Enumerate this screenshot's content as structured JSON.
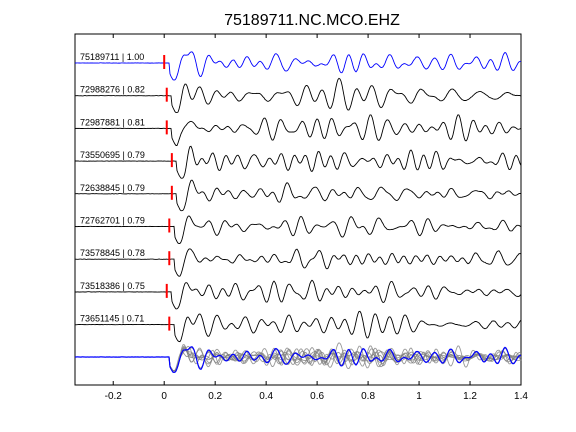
{
  "chart_data": {
    "type": "line",
    "title": "75189711.NC.MCO.EHZ",
    "xlabel": "",
    "ylabel": "",
    "xlim": [
      -0.35,
      1.4
    ],
    "x_ticks": [
      -0.2,
      0,
      0.2,
      0.4,
      0.6,
      0.8,
      1.0,
      1.2,
      1.4
    ],
    "x_tick_labels": [
      "-0.2",
      "0",
      "0.2",
      "0.4",
      "0.6",
      "0.8",
      "1",
      "1.2",
      "1.4"
    ],
    "grid": false,
    "legend": "none",
    "colors": {
      "reference": "#0000ff",
      "trace": "#000000",
      "pick": "#ff0000",
      "stack": "#808080"
    },
    "traces": [
      {
        "id": "75189711",
        "cc": "1.00",
        "label": "75189711 | 1.00",
        "pick": 0.0,
        "reference": true
      },
      {
        "id": "72988276",
        "cc": "0.82",
        "label": "72988276 | 0.82",
        "pick": 0.01
      },
      {
        "id": "72987881",
        "cc": "0.81",
        "label": "72987881 | 0.81",
        "pick": 0.01
      },
      {
        "id": "73550695",
        "cc": "0.79",
        "label": "73550695 | 0.79",
        "pick": 0.03
      },
      {
        "id": "72638845",
        "cc": "0.79",
        "label": "72638845 | 0.79",
        "pick": 0.03
      },
      {
        "id": "72762701",
        "cc": "0.79",
        "label": "72762701 | 0.79",
        "pick": 0.02
      },
      {
        "id": "73578845",
        "cc": "0.78",
        "label": "73578845 | 0.78",
        "pick": 0.02
      },
      {
        "id": "73518386",
        "cc": "0.75",
        "label": "73518386 | 0.75",
        "pick": 0.01
      },
      {
        "id": "73651145",
        "cc": "0.71",
        "label": "73651145 | 0.71",
        "pick": 0.02
      }
    ],
    "stack": {
      "overlay_count": 9
    }
  }
}
